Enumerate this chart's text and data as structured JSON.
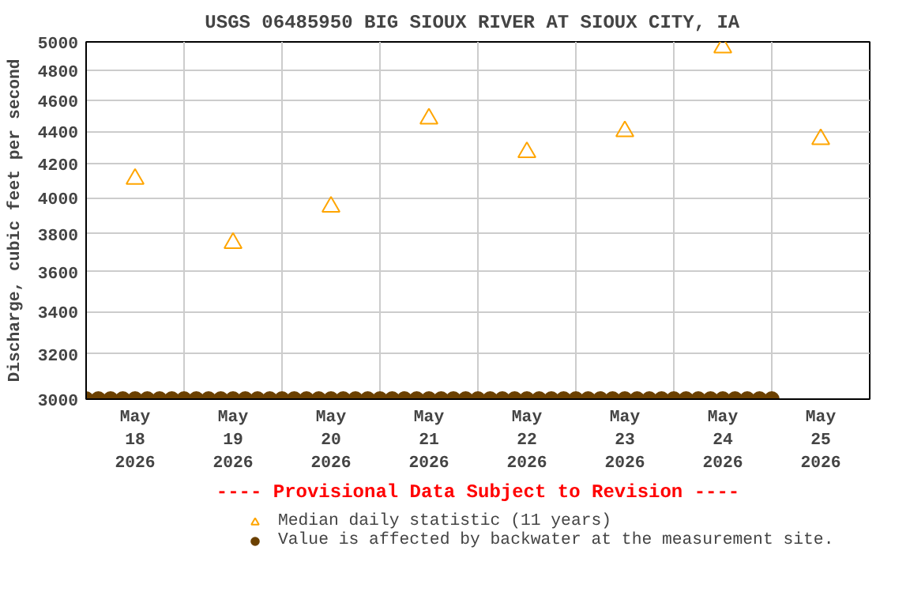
{
  "chart_data": {
    "type": "scatter",
    "title": "USGS 06485950 BIG SIOUX RIVER AT SIOUX CITY,  IA",
    "ylabel": "Discharge, cubic feet per second",
    "annotations": [
      "---- Provisional Data Subject to Revision ----"
    ],
    "log": "y",
    "grid": true,
    "legend": "bottom",
    "xlim": [
      "2026-05-18T00:00",
      "2026-05-26T00:00"
    ],
    "xticks": [
      {
        "value": "2026-05-18T12:00",
        "label": "May\n18\n2026"
      },
      {
        "value": "2026-05-19T12:00",
        "label": "May\n19\n2026"
      },
      {
        "value": "2026-05-20T12:00",
        "label": "May\n20\n2026"
      },
      {
        "value": "2026-05-21T12:00",
        "label": "May\n21\n2026"
      },
      {
        "value": "2026-05-22T12:00",
        "label": "May\n22\n2026"
      },
      {
        "value": "2026-05-23T12:00",
        "label": "May\n23\n2026"
      },
      {
        "value": "2026-05-24T12:00",
        "label": "May\n24\n2026"
      },
      {
        "value": "2026-05-25T12:00",
        "label": "May\n25\n2026"
      },
      {
        "value": "2026-05-19T00:00",
        "label": null
      },
      {
        "value": "2026-05-20T00:00",
        "label": null
      },
      {
        "value": "2026-05-21T00:00",
        "label": null
      },
      {
        "value": "2026-05-22T00:00",
        "label": null
      },
      {
        "value": "2026-05-23T00:00",
        "label": null
      },
      {
        "value": "2026-05-24T00:00",
        "label": null
      },
      {
        "value": "2026-05-25T00:00",
        "label": null
      }
    ],
    "ylim": [
      3000,
      5000
    ],
    "yticks": [
      3000,
      3200,
      3400,
      3600,
      3800,
      4000,
      4200,
      4400,
      4600,
      4800,
      5000
    ],
    "series": [
      {
        "name": "Median daily statistic (11 years)",
        "color": "#ffa500",
        "marker": "triangle",
        "x": [
          "2026-05-18T12:00",
          "2026-05-19T12:00",
          "2026-05-20T12:00",
          "2026-05-21T12:00",
          "2026-05-22T12:00",
          "2026-05-23T12:00",
          "2026-05-24T12:00",
          "2026-05-25T12:00"
        ],
        "values": [
          4110,
          3750,
          3950,
          4480,
          4270,
          4400,
          4960,
          4350
        ]
      },
      {
        "name": "Value is affected by backwater at the measurement site.",
        "color": "#6b4000",
        "marker": "circle",
        "x": [
          "2026-05-18T00:00",
          "2026-05-18T03:00",
          "2026-05-18T06:00",
          "2026-05-18T09:00",
          "2026-05-18T12:00",
          "2026-05-18T15:00",
          "2026-05-18T18:00",
          "2026-05-18T21:00",
          "2026-05-19T00:00",
          "2026-05-19T03:00",
          "2026-05-19T06:00",
          "2026-05-19T09:00",
          "2026-05-19T12:00",
          "2026-05-19T15:00",
          "2026-05-19T18:00",
          "2026-05-19T21:00",
          "2026-05-20T00:00",
          "2026-05-20T03:00",
          "2026-05-20T06:00",
          "2026-05-20T09:00",
          "2026-05-20T12:00",
          "2026-05-20T15:00",
          "2026-05-20T18:00",
          "2026-05-20T21:00",
          "2026-05-21T00:00",
          "2026-05-21T03:00",
          "2026-05-21T06:00",
          "2026-05-21T09:00",
          "2026-05-21T12:00",
          "2026-05-21T15:00",
          "2026-05-21T18:00",
          "2026-05-21T21:00",
          "2026-05-22T00:00",
          "2026-05-22T03:00",
          "2026-05-22T06:00",
          "2026-05-22T09:00",
          "2026-05-22T12:00",
          "2026-05-22T15:00",
          "2026-05-22T18:00",
          "2026-05-22T21:00",
          "2026-05-23T00:00",
          "2026-05-23T03:00",
          "2026-05-23T06:00",
          "2026-05-23T09:00",
          "2026-05-23T12:00",
          "2026-05-23T15:00",
          "2026-05-23T18:00",
          "2026-05-23T21:00",
          "2026-05-24T00:00",
          "2026-05-24T03:00",
          "2026-05-24T06:00",
          "2026-05-24T09:00",
          "2026-05-24T12:00",
          "2026-05-24T15:00",
          "2026-05-24T18:00",
          "2026-05-24T21:00",
          "2026-05-25T00:00"
        ],
        "values": [
          3000,
          3000,
          3000,
          3000,
          3000,
          3000,
          3000,
          3000,
          3000,
          3000,
          3000,
          3000,
          3000,
          3000,
          3000,
          3000,
          3000,
          3000,
          3000,
          3000,
          3000,
          3000,
          3000,
          3000,
          3000,
          3000,
          3000,
          3000,
          3000,
          3000,
          3000,
          3000,
          3000,
          3000,
          3000,
          3000,
          3000,
          3000,
          3000,
          3000,
          3000,
          3000,
          3000,
          3000,
          3000,
          3000,
          3000,
          3000,
          3000,
          3000,
          3000,
          3000,
          3000,
          3000,
          3000,
          3000,
          3000
        ]
      }
    ]
  }
}
